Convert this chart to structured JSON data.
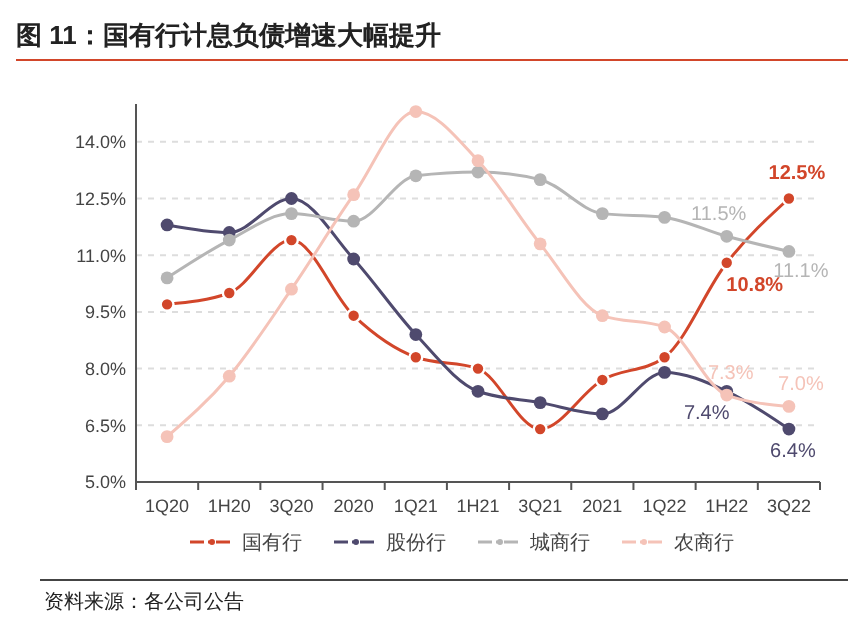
{
  "chart_data": {
    "type": "line",
    "title": "图 11：国有行计息负债增速大幅提升",
    "categories": [
      "1Q20",
      "1H20",
      "3Q20",
      "2020",
      "1Q21",
      "1H21",
      "3Q21",
      "2021",
      "1Q22",
      "1H22",
      "3Q22"
    ],
    "series": [
      {
        "name": "国有行",
        "color": "#d2462a",
        "values": [
          9.7,
          10.0,
          11.4,
          9.4,
          8.3,
          8.0,
          6.4,
          7.7,
          8.3,
          10.8,
          12.5
        ],
        "value_labels": [
          null,
          null,
          null,
          null,
          null,
          null,
          null,
          null,
          null,
          "10.8%",
          "12.5%"
        ]
      },
      {
        "name": "股份行",
        "color": "#4f4a6e",
        "values": [
          11.8,
          11.6,
          12.5,
          10.9,
          8.9,
          7.4,
          7.1,
          6.8,
          7.9,
          7.4,
          6.4
        ],
        "value_labels": [
          null,
          null,
          null,
          null,
          null,
          null,
          null,
          null,
          null,
          "7.4%",
          "6.4%"
        ]
      },
      {
        "name": "城商行",
        "color": "#b5b5b5",
        "values": [
          10.4,
          11.4,
          12.1,
          11.9,
          13.1,
          13.2,
          13.0,
          12.1,
          12.0,
          11.5,
          11.1
        ],
        "value_labels": [
          null,
          null,
          null,
          null,
          null,
          null,
          null,
          null,
          null,
          "11.5%",
          "11.1%"
        ]
      },
      {
        "name": "农商行",
        "color": "#f5c3b8",
        "values": [
          6.2,
          7.8,
          10.1,
          12.6,
          14.8,
          13.5,
          11.3,
          9.4,
          9.1,
          7.3,
          7.0
        ],
        "value_labels": [
          null,
          null,
          null,
          null,
          null,
          null,
          null,
          null,
          null,
          "7.3%",
          "7.0%"
        ]
      }
    ],
    "ylim": [
      5,
      15
    ],
    "yticks": [
      {
        "value": 5,
        "label": "5.0%"
      },
      {
        "value": 6.5,
        "label": "6.5%"
      },
      {
        "value": 8,
        "label": "8.0%"
      },
      {
        "value": 9.5,
        "label": "9.5%"
      },
      {
        "value": 11,
        "label": "11.0%"
      },
      {
        "value": 12.5,
        "label": "12.5%"
      },
      {
        "value": 14,
        "label": "14.0%"
      }
    ],
    "grid": "y",
    "legend": "bottom",
    "marker": "circle",
    "line_style": "solid",
    "annotations": [
      "资料来源：各公司公告"
    ]
  }
}
